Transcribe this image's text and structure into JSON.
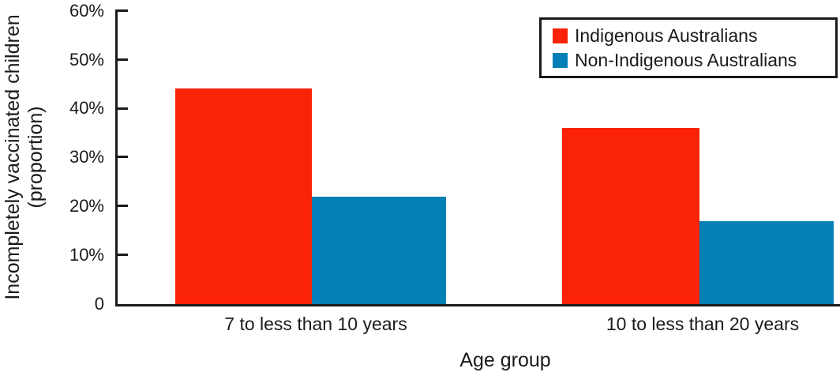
{
  "chart_data": {
    "type": "bar",
    "title": "",
    "xlabel": "Age group",
    "ylabel": "Incompletely vaccinated children (proportion)",
    "ylabel_line1": "Incompletely vaccinated children",
    "ylabel_line2": "(proportion)",
    "categories": [
      "7 to less than 10 years",
      "10 to less than 20 years"
    ],
    "series": [
      {
        "name": "Indigenous Australians",
        "color": "#fa2308",
        "values": [
          44,
          36
        ]
      },
      {
        "name": "Non-Indigenous Australians",
        "color": "#0580b6",
        "values": [
          22,
          17
        ]
      }
    ],
    "unit": "%",
    "ylim": [
      0,
      60
    ],
    "ytick_labels": [
      "60%",
      "50%",
      "40%",
      "30%",
      "20%",
      "10%",
      "0"
    ],
    "grid": false,
    "legend_position": "top-right",
    "axis_color": "#1a1a1a"
  }
}
